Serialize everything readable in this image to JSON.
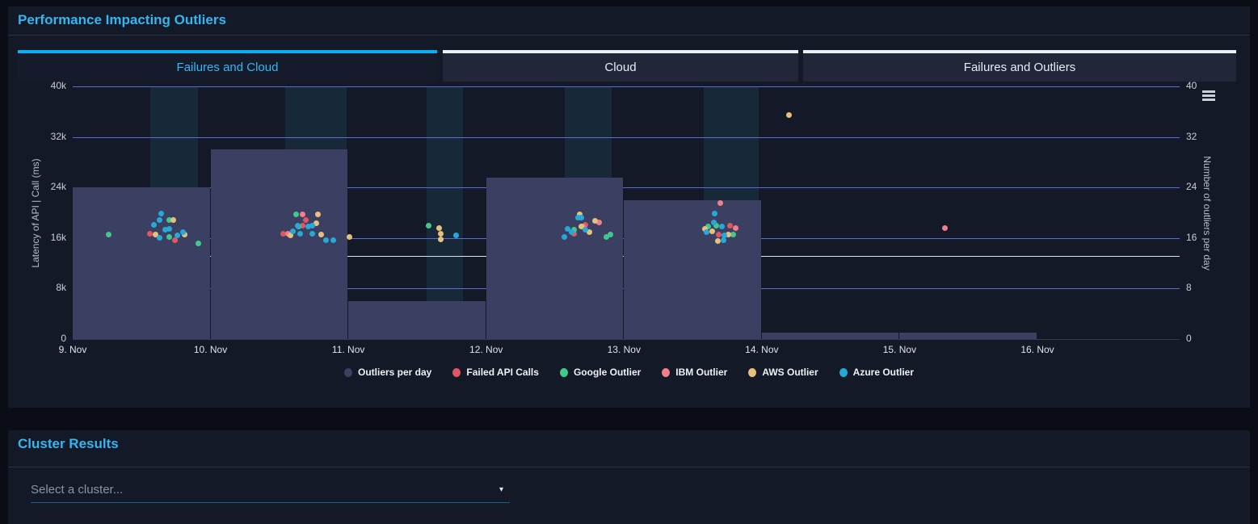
{
  "panel_top": {
    "title": "Performance Impacting Outliers",
    "tabs": [
      {
        "label": "Failures and Cloud",
        "active": true
      },
      {
        "label": "Cloud",
        "active": false
      },
      {
        "label": "Failures and Outliers",
        "active": false
      }
    ]
  },
  "chart_data": {
    "type": "combo: column + scatter",
    "x_axis": {
      "ticks": [
        {
          "day": 9,
          "label": "9. Nov"
        },
        {
          "day": 10,
          "label": "10. Nov"
        },
        {
          "day": 11,
          "label": "11. Nov"
        },
        {
          "day": 12,
          "label": "12. Nov"
        },
        {
          "day": 13,
          "label": "13. Nov"
        },
        {
          "day": 14,
          "label": "14. Nov"
        },
        {
          "day": 15,
          "label": "15. Nov"
        },
        {
          "day": 16,
          "label": "16. Nov"
        }
      ],
      "range_days": [
        9,
        17.03
      ]
    },
    "y_left": {
      "title": "Latency of API | Call (ms)",
      "tick_values": [
        0,
        8000,
        16000,
        24000,
        32000,
        40000
      ],
      "tick_labels": [
        "0",
        "8k",
        "16k",
        "24k",
        "32k",
        "40k"
      ],
      "min": 0,
      "max": 40000
    },
    "y_right": {
      "title": "Number of outliers per day",
      "tick_values": [
        0,
        8,
        16,
        24,
        32,
        40
      ],
      "tick_labels": [
        "0",
        "8",
        "16",
        "24",
        "32",
        "40"
      ],
      "min": 0,
      "max": 40
    },
    "grid_color": "#5b6cd4",
    "axis_line_color": "#343a52",
    "band_color": "rgba(40,110,140,0.18)",
    "threshold_line": {
      "latency_value": 13200,
      "color": "#dfe2ee"
    },
    "plot_bands": [
      {
        "from": 9.56,
        "to": 9.91
      },
      {
        "from": 10.54,
        "to": 10.99
      },
      {
        "from": 11.57,
        "to": 11.83
      },
      {
        "from": 12.57,
        "to": 12.91
      },
      {
        "from": 13.58,
        "to": 13.98
      }
    ],
    "columns": {
      "name": "Outliers per day",
      "color": "#3b4062",
      "data": [
        {
          "from": 9,
          "to": 10,
          "count": 24
        },
        {
          "from": 10,
          "to": 11,
          "count": 30
        },
        {
          "from": 11,
          "to": 12,
          "count": 6
        },
        {
          "from": 12,
          "to": 13,
          "count": 25.5
        },
        {
          "from": 13,
          "to": 14,
          "count": 22
        },
        {
          "from": 14,
          "to": 15,
          "count": 1
        },
        {
          "from": 15,
          "to": 16,
          "count": 1
        }
      ]
    },
    "series": [
      {
        "name": "Failed API Calls",
        "color": "#e05662",
        "marker_name": "failed-api-call-point",
        "points": [
          [
            9.56,
            16700
          ],
          [
            9.74,
            15600
          ],
          [
            10.69,
            18900
          ],
          [
            10.67,
            17900
          ],
          [
            10.53,
            16700
          ],
          [
            12.72,
            18100
          ],
          [
            12.64,
            16700
          ],
          [
            13.77,
            18000
          ],
          [
            13.69,
            16600
          ]
        ]
      },
      {
        "name": "Google Outlier",
        "color": "#41c98b",
        "marker_name": "google-outlier-point",
        "points": [
          [
            9.26,
            16500
          ],
          [
            9.7,
            18900
          ],
          [
            9.7,
            16200
          ],
          [
            9.91,
            15200
          ],
          [
            10.62,
            19800
          ],
          [
            10.64,
            17800
          ],
          [
            11.58,
            17900
          ],
          [
            12.87,
            16200
          ],
          [
            12.9,
            16500
          ],
          [
            12.64,
            17300
          ],
          [
            13.67,
            18000
          ],
          [
            13.61,
            17800
          ],
          [
            13.79,
            16500
          ]
        ]
      },
      {
        "name": "IBM Outlier",
        "color": "#ef7f8a",
        "marker_name": "ibm-outlier-point",
        "points": [
          [
            10.67,
            19700
          ],
          [
            10.56,
            16700
          ],
          [
            12.82,
            18500
          ],
          [
            12.7,
            17800
          ],
          [
            13.7,
            21500
          ],
          [
            13.81,
            17600
          ],
          [
            15.33,
            17600
          ]
        ]
      },
      {
        "name": "AWS Outlier",
        "color": "#e5c17d",
        "marker_name": "aws-outlier-point",
        "points": [
          [
            9.73,
            18800
          ],
          [
            9.6,
            16500
          ],
          [
            9.81,
            16600
          ],
          [
            10.78,
            19800
          ],
          [
            10.77,
            18400
          ],
          [
            10.58,
            16400
          ],
          [
            10.8,
            16500
          ],
          [
            11.01,
            16200
          ],
          [
            11.66,
            17600
          ],
          [
            11.67,
            16700
          ],
          [
            11.67,
            15800
          ],
          [
            12.68,
            19800
          ],
          [
            12.79,
            18700
          ],
          [
            12.69,
            17800
          ],
          [
            12.75,
            16900
          ],
          [
            13.59,
            17500
          ],
          [
            13.64,
            17000
          ],
          [
            13.76,
            16500
          ],
          [
            13.68,
            15500
          ],
          [
            14.2,
            35400
          ]
        ]
      },
      {
        "name": "Azure Outlier",
        "color": "#27a9d8",
        "marker_name": "azure-outlier-point",
        "points": [
          [
            9.64,
            19900
          ],
          [
            9.63,
            18900
          ],
          [
            9.59,
            18100
          ],
          [
            9.63,
            16000
          ],
          [
            9.67,
            17300
          ],
          [
            9.7,
            17400
          ],
          [
            9.76,
            16400
          ],
          [
            9.8,
            16900
          ],
          [
            10.63,
            17900
          ],
          [
            10.71,
            17800
          ],
          [
            10.74,
            18000
          ],
          [
            10.6,
            17000
          ],
          [
            10.65,
            16700
          ],
          [
            10.74,
            16700
          ],
          [
            10.84,
            15700
          ],
          [
            10.89,
            15700
          ],
          [
            11.78,
            16400
          ],
          [
            12.67,
            19200
          ],
          [
            12.69,
            19200
          ],
          [
            12.59,
            17500
          ],
          [
            12.62,
            16900
          ],
          [
            12.72,
            17300
          ],
          [
            12.57,
            16200
          ],
          [
            13.66,
            19900
          ],
          [
            13.65,
            18500
          ],
          [
            13.71,
            17800
          ],
          [
            13.6,
            16900
          ],
          [
            13.73,
            16400
          ],
          [
            13.72,
            15700
          ]
        ]
      }
    ],
    "legend": [
      {
        "label": "Outliers per day",
        "color": "#3b4062"
      },
      {
        "label": "Failed API Calls",
        "color": "#e05662"
      },
      {
        "label": "Google Outlier",
        "color": "#41c98b"
      },
      {
        "label": "IBM Outlier",
        "color": "#ef7f8a"
      },
      {
        "label": "AWS Outlier",
        "color": "#e5c17d"
      },
      {
        "label": "Azure Outlier",
        "color": "#27a9d8"
      }
    ]
  },
  "panel_bottom": {
    "title": "Cluster Results",
    "dropdown_placeholder": "Select a cluster...",
    "caret": "▾"
  }
}
